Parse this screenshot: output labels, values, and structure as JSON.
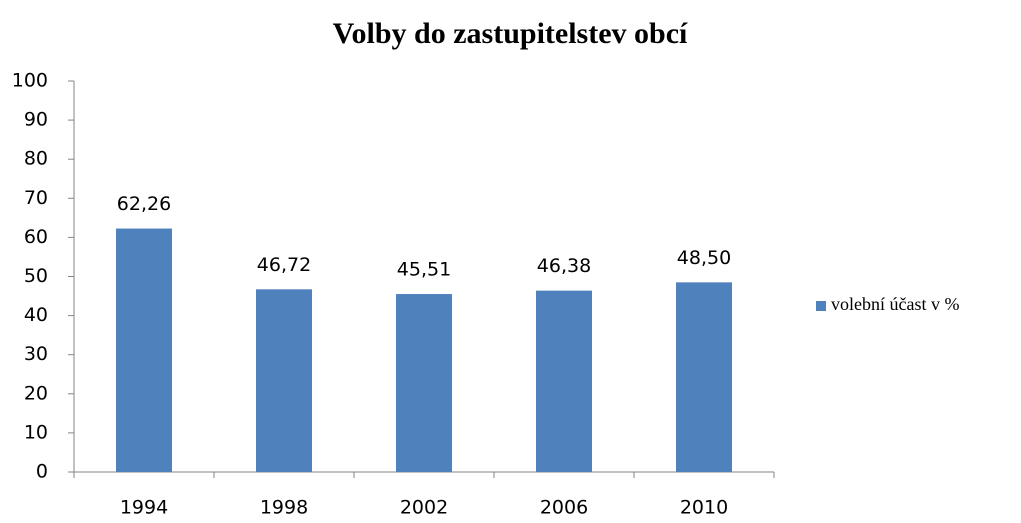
{
  "chart_data": {
    "type": "bar",
    "title": "Volby do zastupitelstev obcí",
    "categories": [
      "1994",
      "1998",
      "2002",
      "2006",
      "2010"
    ],
    "series": [
      {
        "name": "volební účast v %",
        "color": "#4f81bd",
        "values": [
          62.26,
          46.72,
          45.51,
          46.38,
          48.5
        ],
        "value_labels": [
          "62,26",
          "46,72",
          "45,51",
          "46,38",
          "48,50"
        ]
      }
    ],
    "ylim": [
      0,
      100
    ],
    "yticks": [
      0,
      10,
      20,
      30,
      40,
      50,
      60,
      70,
      80,
      90,
      100
    ],
    "grid": false,
    "legend": "right"
  }
}
